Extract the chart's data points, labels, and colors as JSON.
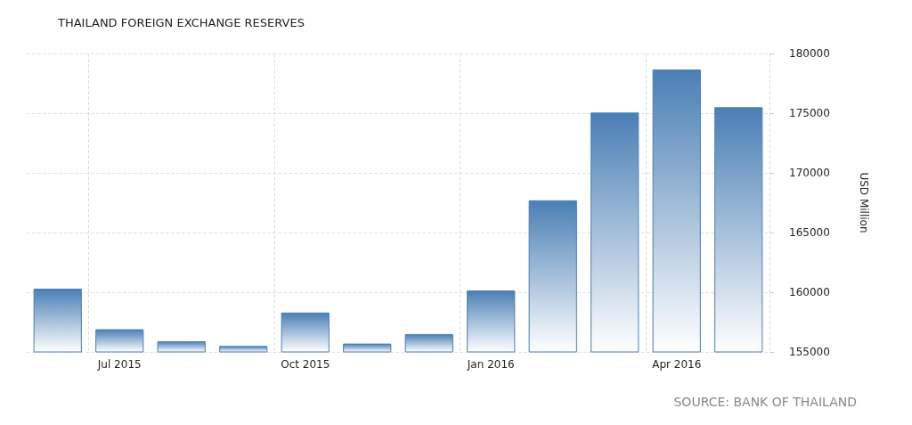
{
  "chart_data": {
    "type": "bar",
    "title": "THAILAND FOREIGN EXCHANGE RESERVES",
    "ylabel": "USD Million",
    "categories": [
      null,
      "Jul 2015",
      null,
      null,
      "Oct 2015",
      null,
      null,
      "Jan 2016",
      null,
      null,
      "Apr 2016",
      null
    ],
    "values": [
      160300,
      156900,
      155900,
      155500,
      158300,
      155700,
      156500,
      160150,
      167700,
      175050,
      178650,
      175500
    ],
    "color": "#4a7fb5",
    "ylim": [
      155000,
      180000
    ],
    "yticks": [
      155000,
      160000,
      165000,
      170000,
      175000,
      180000
    ],
    "grid": true,
    "annotations": [
      "SOURCE: BANK OF THAILAND"
    ]
  }
}
